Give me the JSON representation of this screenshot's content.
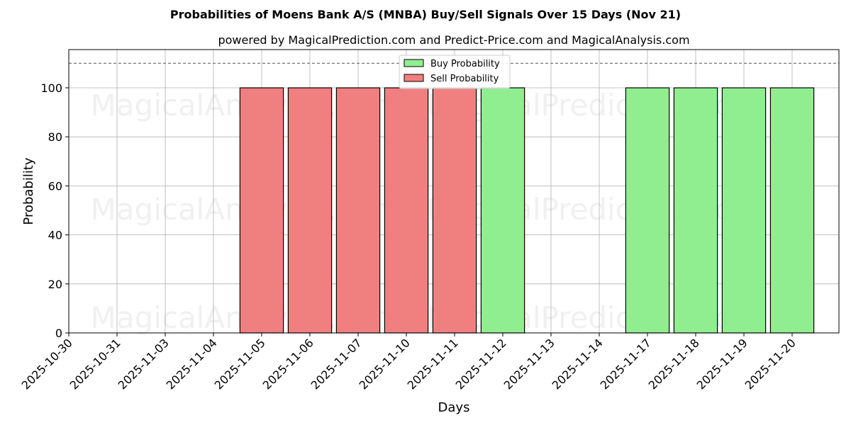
{
  "chart_data": {
    "type": "bar",
    "title": "Probabilities of Moens Bank A/S (MNBA) Buy/Sell Signals Over 15 Days (Nov 21)",
    "subtitle": "powered by MagicalPrediction.com and Predict-Price.com and MagicalAnalysis.com",
    "xlabel": "Days",
    "ylabel": "Probability",
    "ylim": [
      0,
      115.6
    ],
    "yticks": [
      0,
      20,
      40,
      60,
      80,
      100
    ],
    "reference_line": 110,
    "grid": true,
    "legend_position": "top-center",
    "categories": [
      "2025-10-30",
      "2025-10-31",
      "2025-11-03",
      "2025-11-04",
      "2025-11-05",
      "2025-11-06",
      "2025-11-07",
      "2025-11-10",
      "2025-11-11",
      "2025-11-12",
      "2025-11-13",
      "2025-11-14",
      "2025-11-17",
      "2025-11-18",
      "2025-11-19",
      "2025-11-20"
    ],
    "series": [
      {
        "name": "Buy Probability",
        "color": "#90ee90",
        "values": [
          0,
          0,
          0,
          0,
          0,
          0,
          0,
          0,
          0,
          100,
          0,
          0,
          100,
          100,
          100,
          100
        ]
      },
      {
        "name": "Sell Probability",
        "color": "#f08080",
        "values": [
          0,
          0,
          0,
          0,
          100,
          100,
          100,
          100,
          100,
          0,
          0,
          0,
          0,
          0,
          0,
          0
        ]
      }
    ],
    "watermarks": [
      "MagicalAnalysis.com",
      "MagicalPrediction.com"
    ]
  }
}
